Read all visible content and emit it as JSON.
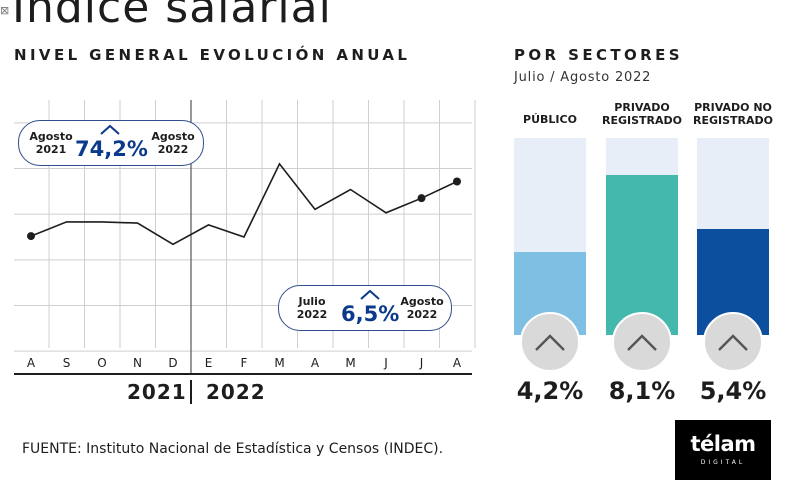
{
  "page": {
    "title": "Índice salarial",
    "source": "FUENTE: Instituto Nacional de Estadística y Censos (INDEC).",
    "logo": {
      "main": "télam",
      "sub": "DIGITAL"
    }
  },
  "left_panel": {
    "heading": "NIVEL GENERAL EVOLUCIÓN ANUAL",
    "callout_annual": {
      "from": "Agosto 2021",
      "value": "74,2%",
      "to": "Agosto 2022"
    },
    "callout_monthly": {
      "from": "Julio 2022",
      "value": "6,5%",
      "to": "Agosto 2022"
    },
    "year_labels": [
      "2021",
      "2022"
    ]
  },
  "right_panel": {
    "heading": "POR SECTORES",
    "subheading": "Julio / Agosto 2022"
  },
  "colors": {
    "line": "#1d1d1b",
    "accent_blue": "#0b3a8c",
    "publico": "#7fbfe3",
    "privado_registrado": "#45b8ad",
    "privado_no_registrado": "#0c4f9e",
    "bar_track": "#e8eef7",
    "arrow_circle": "#d9d9d9"
  },
  "chart_data": [
    {
      "type": "line",
      "title": "NIVEL GENERAL EVOLUCIÓN ANUAL",
      "x": [
        "A",
        "S",
        "O",
        "N",
        "D",
        "E",
        "F",
        "M",
        "A",
        "M",
        "J",
        "J",
        "A"
      ],
      "x_years": [
        "2021",
        "2022"
      ],
      "series": [
        {
          "values": [
            60.4,
            66.6,
            66.6,
            66.1,
            56.8,
            65.3,
            60.0,
            92.0,
            72.1,
            80.8,
            70.6,
            77.0,
            84.3
          ]
        }
      ],
      "ylim": [
        0,
        120
      ],
      "grid": true,
      "marked_points": [
        0,
        11,
        12
      ],
      "annotations": [
        {
          "from": "Agosto 2021",
          "value": "74,2%",
          "to": "Agosto 2022"
        },
        {
          "from": "Julio 2022",
          "value": "6,5%",
          "to": "Agosto 2022"
        }
      ]
    },
    {
      "type": "bar",
      "title": "POR SECTORES",
      "subtitle": "Julio / Agosto 2022",
      "categories": [
        "PÚBLICO",
        "PRIVADO REGISTRADO",
        "PRIVADO NO REGISTRADO"
      ],
      "values": [
        4.2,
        8.1,
        5.4
      ],
      "value_labels": [
        "4,2%",
        "8,1%",
        "5,4%"
      ],
      "ylim": [
        0,
        10
      ]
    }
  ]
}
